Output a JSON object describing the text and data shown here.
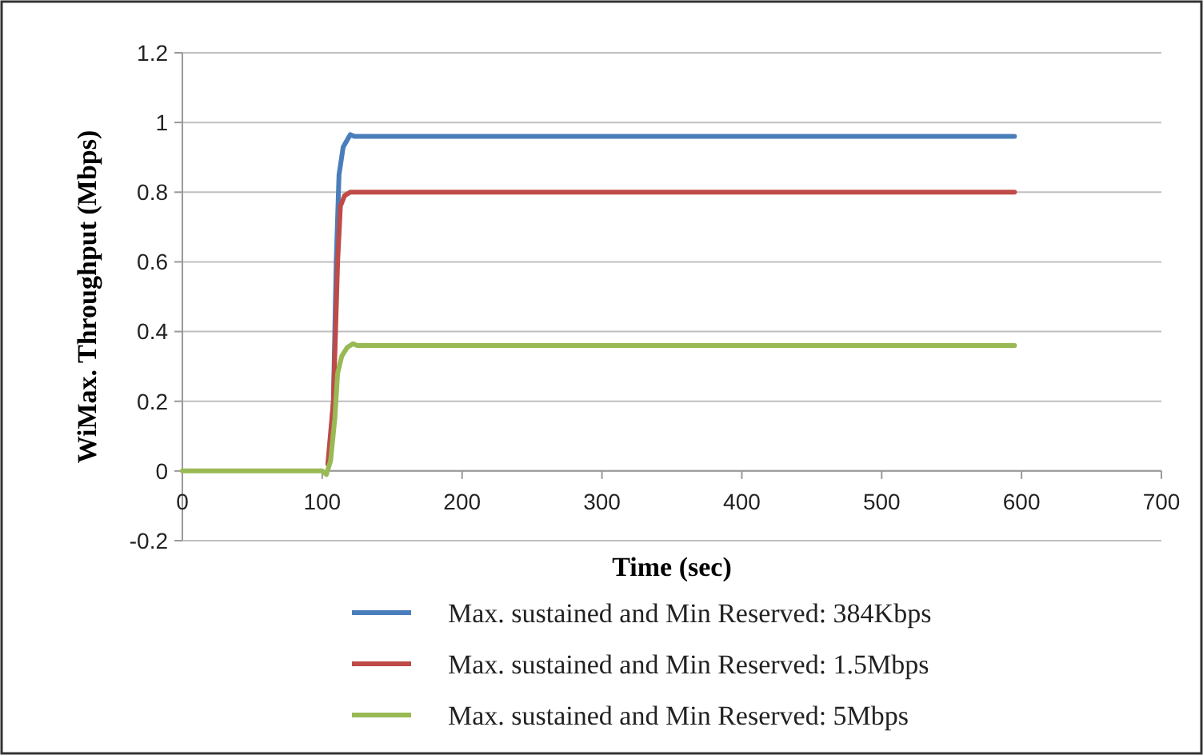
{
  "chart_data": {
    "type": "line",
    "xlabel": "Time (sec)",
    "ylabel": "WiMax. Throughput (Mbps)",
    "xlim": [
      0,
      700
    ],
    "xticks": [
      0,
      100,
      200,
      300,
      400,
      500,
      600,
      700
    ],
    "ylim": [
      -0.2,
      1.2
    ],
    "yticks": [
      -0.2,
      0,
      0.2,
      0.4,
      0.6,
      0.8,
      1,
      1.2
    ],
    "grid": "y",
    "legend": "bottom",
    "marker": "none",
    "line_style": "solid",
    "series": [
      {
        "name": "Max. sustained and Min Reserved: 384Kbps",
        "color": "#4a7ebb",
        "x": [
          105,
          108,
          110,
          112,
          115,
          120,
          123,
          595
        ],
        "values": [
          0.02,
          0.2,
          0.6,
          0.85,
          0.93,
          0.965,
          0.96,
          0.96
        ]
      },
      {
        "name": "Max. sustained and Min Reserved: 1.5Mbps",
        "color": "#be4b48",
        "x": [
          104,
          108,
          111,
          113,
          116,
          120,
          123,
          595
        ],
        "values": [
          0.02,
          0.2,
          0.6,
          0.76,
          0.79,
          0.8,
          0.8,
          0.8
        ]
      },
      {
        "name": "Max. sustained and Min Reserved: 5Mbps",
        "color": "#98b954",
        "x": [
          0,
          100,
          103,
          106,
          109,
          111,
          114,
          118,
          122,
          125,
          595
        ],
        "values": [
          0,
          0,
          -0.01,
          0.03,
          0.15,
          0.28,
          0.33,
          0.355,
          0.365,
          0.36,
          0.36
        ]
      }
    ]
  }
}
